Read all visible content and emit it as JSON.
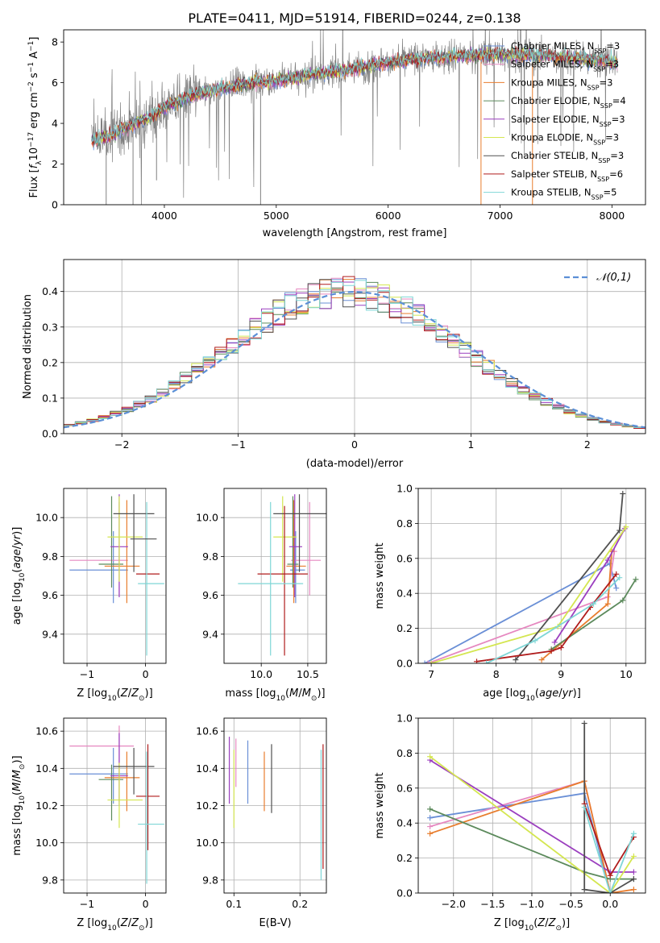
{
  "figure": {
    "title": "PLATE=0411, MJD=51914, FIBERID=0244, z=0.138"
  },
  "legend_models": [
    {
      "label": "Chabrier MILES, N",
      "sub": "SSP",
      "tail": "=3",
      "color": "#6a8fd6"
    },
    {
      "label": "Salpeter MILES, N",
      "sub": "SSP",
      "tail": "=3",
      "color": "#e688c0"
    },
    {
      "label": "Kroupa MILES, N",
      "sub": "SSP",
      "tail": "=3",
      "color": "#e87d2e"
    },
    {
      "label": "Chabrier ELODIE, N",
      "sub": "SSP",
      "tail": "=4",
      "color": "#5c8a5c"
    },
    {
      "label": "Salpeter ELODIE, N",
      "sub": "SSP",
      "tail": "=3",
      "color": "#9b3fbf"
    },
    {
      "label": "Kroupa ELODIE, N",
      "sub": "SSP",
      "tail": "=3",
      "color": "#d4e650"
    },
    {
      "label": "Chabrier STELIB, N",
      "sub": "SSP",
      "tail": "=3",
      "color": "#505050"
    },
    {
      "label": "Salpeter STELIB, N",
      "sub": "SSP",
      "tail": "=6",
      "color": "#b01c1c"
    },
    {
      "label": "Kroupa STELIB, N",
      "sub": "SSP",
      "tail": "=5",
      "color": "#7fd6d6"
    }
  ],
  "chart_data": [
    {
      "id": "spectrum",
      "type": "line",
      "xlabel": "wavelength [Angstrom, rest frame]",
      "ylabel": "Flux [f_λ 10^-17 erg cm^-2 s^-1 A^-1]",
      "xlim": [
        3100,
        8300
      ],
      "ylim": [
        0,
        8.6
      ],
      "xticks": [
        4000,
        5000,
        6000,
        7000,
        8000
      ],
      "yticks": [
        0,
        2,
        4,
        6,
        8
      ],
      "grid": false,
      "legend": "top-right",
      "continuum": {
        "x": [
          3350,
          3500,
          3700,
          3900,
          4000,
          4200,
          4500,
          4800,
          5000,
          5300,
          5600,
          6000,
          6300,
          6600,
          7000,
          7500,
          7900,
          8050
        ],
        "y": [
          3.1,
          3.4,
          3.9,
          4.4,
          4.8,
          5.3,
          5.7,
          6.0,
          6.1,
          6.4,
          6.6,
          7.0,
          7.2,
          7.3,
          7.4,
          7.3,
          7.1,
          7.0
        ]
      }
    },
    {
      "id": "residuals",
      "type": "line",
      "xlabel": "(data-model)/error",
      "ylabel": "Normed distribution",
      "xlim": [
        -2.5,
        2.5
      ],
      "ylim": [
        0,
        0.49
      ],
      "xticks": [
        -2,
        -1,
        0,
        1,
        2
      ],
      "yticks": [
        0.0,
        0.1,
        0.2,
        0.3,
        0.4
      ],
      "grid": true,
      "legend": "top-right",
      "series": [
        {
          "name": "𝒩(0,1)",
          "color": "#5b8fd6",
          "style": "dashed"
        }
      ]
    },
    {
      "id": "age_vs_Z",
      "type": "scatter",
      "xlabel": "Z [log10(Z/Z☉)]",
      "ylabel": "age [log10(age/yr)]",
      "xlim": [
        -1.4,
        0.35
      ],
      "ylim": [
        9.25,
        10.15
      ],
      "xticks": [
        -1,
        0
      ],
      "yticks": [
        9.4,
        9.6,
        9.8,
        10.0
      ],
      "grid": true,
      "points": [
        {
          "x": -0.55,
          "xerr": [
            0.75,
            0.25
          ],
          "y": 9.73,
          "yerr": [
            0.17,
            0.2
          ],
          "color": "#6a8fd6"
        },
        {
          "x": -0.45,
          "xerr": [
            0.85,
            0.15
          ],
          "y": 9.78,
          "yerr": [
            0.18,
            0.3
          ],
          "color": "#e688c0"
        },
        {
          "x": -0.32,
          "xerr": [
            0.38,
            0.22
          ],
          "y": 9.75,
          "yerr": [
            0.19,
            0.34
          ],
          "color": "#e87d2e"
        },
        {
          "x": -0.58,
          "xerr": [
            0.22,
            0.2
          ],
          "y": 9.76,
          "yerr": [
            0.12,
            0.35
          ],
          "color": "#5c8a5c"
        },
        {
          "x": -0.45,
          "xerr": [
            0.15,
            0.15
          ],
          "y": 9.85,
          "yerr": [
            0.26,
            0.27
          ],
          "color": "#9b3fbf"
        },
        {
          "x": -0.45,
          "xerr": [
            0.2,
            0.4
          ],
          "y": 9.9,
          "yerr": [
            0.23,
            0.21
          ],
          "color": "#d4e650"
        },
        {
          "x": -0.2,
          "xerr": [
            0.35,
            0.35
          ],
          "y": 10.02,
          "yerr": [
            0.3,
            0.1
          ],
          "color": "#505050"
        },
        {
          "x": 0.04,
          "xerr": [
            0.2,
            0.2
          ],
          "y": 9.71,
          "yerr": [
            0.0,
            0.0
          ],
          "color": "#b01c1c"
        },
        {
          "x": 0.02,
          "xerr": [
            0.15,
            0.3
          ],
          "y": 9.66,
          "yerr": [
            0.37,
            0.42
          ],
          "color": "#7fd6d6"
        },
        {
          "x": 0.04,
          "xerr": [
            0.3,
            0.15
          ],
          "y": 9.89,
          "yerr": [
            0.0,
            0.0
          ],
          "color": "#505050"
        }
      ]
    },
    {
      "id": "age_vs_mass",
      "type": "scatter",
      "xlabel": "mass [log10(M/M☉)]",
      "ylabel": "",
      "xlim": [
        9.6,
        10.7
      ],
      "ylim": [
        9.25,
        10.15
      ],
      "xticks": [
        10.0,
        10.5
      ],
      "yticks": [
        9.4,
        9.6,
        9.8,
        10.0
      ],
      "grid": true,
      "points": [
        {
          "x": 10.37,
          "xerr": [
            0.06,
            0.1
          ],
          "y": 9.73,
          "yerr": [
            0.17,
            0.2
          ],
          "color": "#6a8fd6"
        },
        {
          "x": 10.52,
          "xerr": [
            0.2,
            0.12
          ],
          "y": 9.78,
          "yerr": [
            0.18,
            0.3
          ],
          "color": "#e688c0"
        },
        {
          "x": 10.35,
          "xerr": [
            0.08,
            0.13
          ],
          "y": 9.75,
          "yerr": [
            0.19,
            0.34
          ],
          "color": "#e87d2e"
        },
        {
          "x": 10.34,
          "xerr": [
            0.06,
            0.06
          ],
          "y": 9.76,
          "yerr": [
            0.12,
            0.35
          ],
          "color": "#5c8a5c"
        },
        {
          "x": 10.36,
          "xerr": [
            0.06,
            0.08
          ],
          "y": 9.85,
          "yerr": [
            0.26,
            0.27
          ],
          "color": "#9b3fbf"
        },
        {
          "x": 10.23,
          "xerr": [
            0.1,
            0.15
          ],
          "y": 9.9,
          "yerr": [
            0.23,
            0.21
          ],
          "color": "#d4e650"
        },
        {
          "x": 10.41,
          "xerr": [
            0.28,
            0.3
          ],
          "y": 10.02,
          "yerr": [
            0.3,
            0.1
          ],
          "color": "#505050"
        },
        {
          "x": 10.25,
          "xerr": [
            0.29,
            0.25
          ],
          "y": 9.71,
          "yerr": [
            0.42,
            0.35
          ],
          "color": "#b01c1c"
        },
        {
          "x": 10.1,
          "xerr": [
            0.35,
            0.35
          ],
          "y": 9.66,
          "yerr": [
            0.37,
            0.42
          ],
          "color": "#7fd6d6"
        }
      ]
    },
    {
      "id": "weight_vs_age",
      "type": "line",
      "xlabel": "age [log10(age/yr)]",
      "ylabel": "mass weight",
      "xlim": [
        6.8,
        10.3
      ],
      "ylim": [
        0,
        1
      ],
      "xticks": [
        7,
        8,
        9,
        10
      ],
      "yticks": [
        0.0,
        0.2,
        0.4,
        0.6,
        0.8,
        1.0
      ],
      "grid": true,
      "series": [
        {
          "color": "#6a8fd6",
          "x": [
            6.9,
            9.75,
            9.85
          ],
          "y": [
            0.0,
            0.57,
            0.43
          ]
        },
        {
          "color": "#e688c0",
          "x": [
            6.95,
            9.72,
            9.82
          ],
          "y": [
            0.0,
            0.38,
            0.64
          ]
        },
        {
          "color": "#e87d2e",
          "x": [
            8.7,
            9.72,
            9.78
          ],
          "y": [
            0.02,
            0.34,
            0.64
          ]
        },
        {
          "color": "#5c8a5c",
          "x": [
            8.85,
            9.95,
            10.15
          ],
          "y": [
            0.08,
            0.36,
            0.48
          ]
        },
        {
          "color": "#9b3fbf",
          "x": [
            8.9,
            9.72,
            9.98
          ],
          "y": [
            0.12,
            0.59,
            0.77
          ]
        },
        {
          "color": "#d4e650",
          "x": [
            7.0,
            8.95,
            10.0
          ],
          "y": [
            0.0,
            0.21,
            0.78
          ]
        },
        {
          "color": "#505050",
          "x": [
            8.3,
            9.9,
            9.95
          ],
          "y": [
            0.02,
            0.76,
            0.97
          ]
        },
        {
          "color": "#b01c1c",
          "x": [
            7.7,
            8.85,
            9.0,
            9.45,
            9.85
          ],
          "y": [
            0.01,
            0.07,
            0.09,
            0.32,
            0.51
          ]
        },
        {
          "color": "#7fd6d6",
          "x": [
            7.85,
            8.6,
            9.5,
            9.9
          ],
          "y": [
            0.0,
            0.13,
            0.34,
            0.49
          ]
        }
      ]
    },
    {
      "id": "mass_vs_Z",
      "type": "scatter",
      "xlabel": "Z [log10(Z/Z☉)]",
      "ylabel": "mass [log10(M/M☉)]",
      "xlim": [
        -1.4,
        0.35
      ],
      "ylim": [
        9.73,
        10.67
      ],
      "xticks": [
        -1,
        0
      ],
      "yticks": [
        9.8,
        10.0,
        10.2,
        10.4,
        10.6
      ],
      "grid": true,
      "points": [
        {
          "x": -0.55,
          "xerr": [
            0.75,
            0.25
          ],
          "y": 10.37,
          "yerr": [
            0.16,
            0.14
          ],
          "color": "#6a8fd6"
        },
        {
          "x": -0.45,
          "xerr": [
            0.85,
            0.25
          ],
          "y": 10.52,
          "yerr": [
            0.3,
            0.11
          ],
          "color": "#e688c0"
        },
        {
          "x": -0.32,
          "xerr": [
            0.38,
            0.22
          ],
          "y": 10.35,
          "yerr": [
            0.18,
            0.14
          ],
          "color": "#e87d2e"
        },
        {
          "x": -0.58,
          "xerr": [
            0.22,
            0.2
          ],
          "y": 10.34,
          "yerr": [
            0.22,
            0.08
          ],
          "color": "#5c8a5c"
        },
        {
          "x": -0.45,
          "xerr": [
            0.15,
            0.15
          ],
          "y": 10.36,
          "yerr": [
            0.16,
            0.23
          ],
          "color": "#9b3fbf"
        },
        {
          "x": -0.45,
          "xerr": [
            0.2,
            0.4
          ],
          "y": 10.23,
          "yerr": [
            0.15,
            0.2
          ],
          "color": "#d4e650"
        },
        {
          "x": -0.2,
          "xerr": [
            0.35,
            0.35
          ],
          "y": 10.41,
          "yerr": [
            0.15,
            0.1
          ],
          "color": "#505050"
        },
        {
          "x": 0.04,
          "xerr": [
            0.2,
            0.2
          ],
          "y": 10.25,
          "yerr": [
            0.29,
            0.28
          ],
          "color": "#b01c1c"
        },
        {
          "x": 0.02,
          "xerr": [
            0.15,
            0.3
          ],
          "y": 10.1,
          "yerr": [
            0.32,
            0.39
          ],
          "color": "#7fd6d6"
        }
      ]
    },
    {
      "id": "mass_vs_EBV",
      "type": "scatter",
      "xlabel": "E(B-V)",
      "ylabel": "",
      "xlim": [
        0.085,
        0.24
      ],
      "ylim": [
        9.73,
        10.67
      ],
      "xticks": [
        0.1,
        0.2
      ],
      "yticks": [
        9.8,
        10.0,
        10.2,
        10.4,
        10.6
      ],
      "grid": true,
      "points": [
        {
          "x": 0.093,
          "y": 10.37,
          "yerr": [
            0.16,
            0.2
          ],
          "color": "#9b3fbf"
        },
        {
          "x": 0.1,
          "y": 10.3,
          "yerr": [
            0.22,
            0.2
          ],
          "color": "#d4e650"
        },
        {
          "x": 0.103,
          "y": 10.38,
          "yerr": [
            0.08,
            0.18
          ],
          "color": "#e688c0"
        },
        {
          "x": 0.121,
          "y": 10.37,
          "yerr": [
            0.16,
            0.18
          ],
          "color": "#6a8fd6"
        },
        {
          "x": 0.146,
          "y": 10.31,
          "yerr": [
            0.14,
            0.18
          ],
          "color": "#e87d2e"
        },
        {
          "x": 0.157,
          "y": 10.33,
          "yerr": [
            0.17,
            0.2
          ],
          "color": "#505050"
        },
        {
          "x": 0.232,
          "y": 10.2,
          "yerr": [
            0.4,
            0.3
          ],
          "color": "#7fd6d6"
        },
        {
          "x": 0.235,
          "y": 10.2,
          "yerr": [
            0.34,
            0.33
          ],
          "color": "#b01c1c"
        }
      ]
    },
    {
      "id": "weight_vs_Z",
      "type": "line",
      "xlabel": "Z [log10(Z/Z☉)]",
      "ylabel": "mass weight",
      "xlim": [
        -2.45,
        0.45
      ],
      "ylim": [
        0,
        1
      ],
      "xticks": [
        -2.0,
        -1.5,
        -1.0,
        -0.5,
        0.0
      ],
      "yticks": [
        0.0,
        0.2,
        0.4,
        0.6,
        0.8,
        1.0
      ],
      "grid": true,
      "series": [
        {
          "color": "#6a8fd6",
          "x": [
            -2.3,
            -0.33,
            0.0
          ],
          "y": [
            0.43,
            0.57,
            0.0
          ]
        },
        {
          "color": "#e688c0",
          "x": [
            -2.3,
            -0.33,
            0.0
          ],
          "y": [
            0.38,
            0.64,
            0.0
          ]
        },
        {
          "color": "#e87d2e",
          "x": [
            -2.3,
            -0.33,
            0.0,
            0.3
          ],
          "y": [
            0.34,
            0.64,
            0.0,
            0.02
          ]
        },
        {
          "color": "#5c8a5c",
          "x": [
            -2.3,
            -0.33,
            0.0,
            0.3
          ],
          "y": [
            0.48,
            0.12,
            0.08,
            0.08
          ]
        },
        {
          "color": "#9b3fbf",
          "x": [
            -2.3,
            0.0,
            0.3
          ],
          "y": [
            0.76,
            0.12,
            0.12
          ]
        },
        {
          "color": "#d4e650",
          "x": [
            -2.3,
            0.0,
            0.3
          ],
          "y": [
            0.78,
            0.0,
            0.21
          ]
        },
        {
          "color": "#505050",
          "x": [
            -0.33,
            -0.33,
            0.0,
            0.3
          ],
          "y": [
            0.97,
            0.02,
            0.0,
            0.08
          ]
        },
        {
          "color": "#b01c1c",
          "x": [
            -0.33,
            0.0,
            0.3
          ],
          "y": [
            0.51,
            0.1,
            0.32
          ]
        },
        {
          "color": "#7fd6d6",
          "x": [
            -0.33,
            0.0,
            0.3
          ],
          "y": [
            0.49,
            0.0,
            0.34
          ]
        }
      ]
    }
  ]
}
